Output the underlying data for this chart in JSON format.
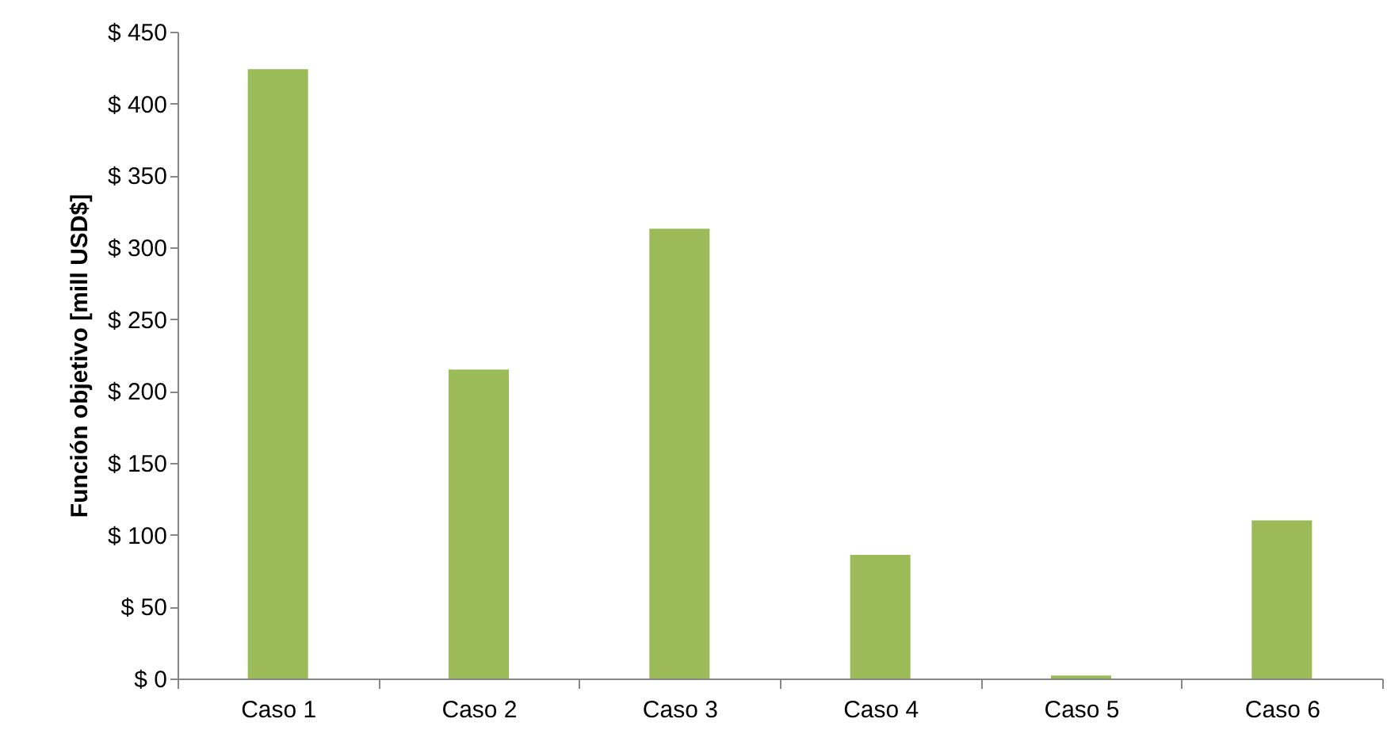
{
  "chart_data": {
    "type": "bar",
    "ylabel": "Función  objetivo [mill USD$]",
    "categories": [
      "Caso 1",
      "Caso 2",
      "Caso 3",
      "Caso 4",
      "Caso 5",
      "Caso 6"
    ],
    "values": [
      424,
      215,
      313,
      86,
      2,
      110
    ],
    "color": "#9bbb59",
    "ylim": [
      0,
      450
    ],
    "yticks": [
      {
        "value": 0,
        "label": "$ 0"
      },
      {
        "value": 50,
        "label": "$ 50"
      },
      {
        "value": 100,
        "label": "$ 100"
      },
      {
        "value": 150,
        "label": "$ 150"
      },
      {
        "value": 200,
        "label": "$ 200"
      },
      {
        "value": 250,
        "label": "$ 250"
      },
      {
        "value": 300,
        "label": "$ 300"
      },
      {
        "value": 350,
        "label": "$ 350"
      },
      {
        "value": 400,
        "label": "$ 400"
      },
      {
        "value": 450,
        "label": "$ 450"
      }
    ],
    "grid": false
  }
}
